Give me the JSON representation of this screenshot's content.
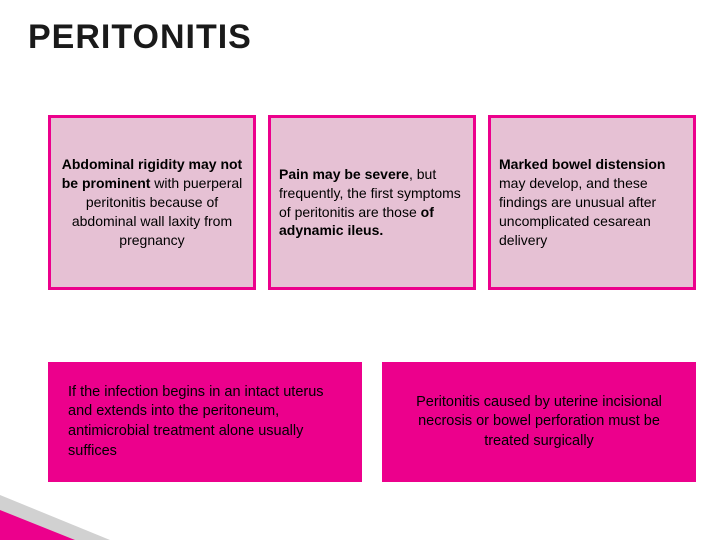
{
  "title": "PERITONITIS",
  "cards_top": [
    {
      "pre": "",
      "bold1": "Abdominal rigidity may not be prominent",
      "mid": " with puerperal peritonitis because of abdominal wall laxity from pregnancy",
      "bold2": "",
      "post": ""
    },
    {
      "pre": "",
      "bold1": "Pain may be severe",
      "mid": ", but frequently, the first symptoms of peritonitis are those ",
      "bold2": "of adynamic ileus.",
      "post": ""
    },
    {
      "pre": "",
      "bold1": "Marked bowel distension",
      "mid": " may develop, and these findings are unusual after uncomplicated cesarean delivery",
      "bold2": "",
      "post": ""
    }
  ],
  "cards_bottom": [
    "If the infection begins in an intact uterus and extends into the peritoneum, antimicrobial treatment alone usually suffices",
    "Peritonitis caused by uterine incisional necrosis or bowel perforation must be treated surgically"
  ],
  "colors": {
    "magenta": "#ec008c",
    "card_inner": "#e6c1d4",
    "text": "#000000",
    "title": "#1a1a1a",
    "triangle_gray": "#d1d1d1"
  }
}
